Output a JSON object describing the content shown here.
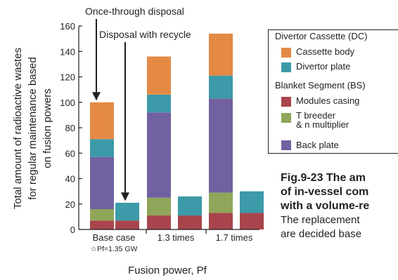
{
  "chart_data": {
    "type": "bar",
    "stacked": true,
    "ylabel_lines": [
      "Total amount of radioactive wastes",
      "for regular maintenance based",
      "on fusion powers"
    ],
    "xlabel": "Fusion power, Pf",
    "ylim": [
      0,
      160
    ],
    "yticks": [
      0,
      20,
      40,
      60,
      80,
      100,
      120,
      140,
      160
    ],
    "groups": [
      {
        "label": "Base case",
        "sublabel": "☆Pf=1.35 GW"
      },
      {
        "label": "1.3 times",
        "sublabel": ""
      },
      {
        "label": "1.7 times",
        "sublabel": ""
      }
    ],
    "bars": [
      {
        "group": 0,
        "scenario": "Once-through disposal",
        "values": [
          7,
          9,
          41,
          14,
          29
        ]
      },
      {
        "group": 0,
        "scenario": "Disposal with recycle",
        "values": [
          7,
          0,
          0,
          14,
          0
        ]
      },
      {
        "group": 1,
        "scenario": "Once-through disposal",
        "values": [
          11,
          14,
          67,
          14,
          30
        ]
      },
      {
        "group": 1,
        "scenario": "Disposal with recycle",
        "values": [
          11,
          0,
          0,
          15,
          0
        ]
      },
      {
        "group": 2,
        "scenario": "Once-through disposal",
        "values": [
          13,
          16,
          74,
          18,
          33
        ]
      },
      {
        "group": 2,
        "scenario": "Disposal with recycle",
        "values": [
          13,
          0,
          0,
          17,
          0
        ]
      }
    ],
    "components": [
      "Modules casing",
      "T breeder\n& n multiplier",
      "Back plate",
      "Divertor plate",
      "Cassette body"
    ],
    "colors": [
      "#a9444c",
      "#8fa65a",
      "#7261a1",
      "#3c9aa9",
      "#e48a46"
    ],
    "annotations": [
      {
        "text": "Once-through disposal",
        "target_bar": 0
      },
      {
        "text": "Disposal with recycle",
        "target_bar": 1
      }
    ],
    "legend": {
      "groups": [
        {
          "title": "Divertor Cassette (DC)",
          "items": [
            {
              "label": "Cassette body",
              "color": "#e48a46"
            },
            {
              "label": "Divertor plate",
              "color": "#3c9aa9"
            }
          ]
        },
        {
          "title": "Blanket Segment (BS)",
          "items": [
            {
              "label": "Modules casing",
              "color": "#a9444c"
            },
            {
              "label_lines": [
                "T breeder",
                "& n multiplier"
              ],
              "color": "#8fa65a"
            },
            {
              "label": "Back plate",
              "color": "#7261a1"
            }
          ]
        }
      ]
    }
  },
  "caption": {
    "line1": "Fig.9-23  The am",
    "line2": "of in-vessel com",
    "line3": "with a volume-re",
    "line4": "The replacement",
    "line5": "are decided base"
  }
}
